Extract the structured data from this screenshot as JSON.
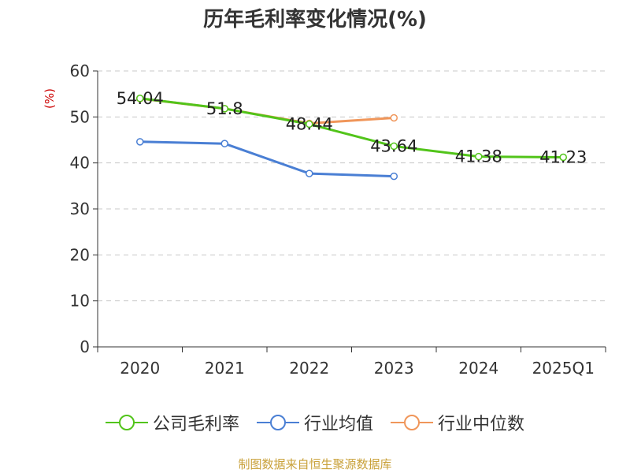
{
  "chart_data": {
    "type": "line",
    "title": "历年毛利率变化情况(%)",
    "ylabel": "(%)",
    "xlabel": "",
    "categories": [
      "2020",
      "2021",
      "2022",
      "2023",
      "2024",
      "2025Q1"
    ],
    "ylim": [
      0,
      60
    ],
    "yticks": [
      0,
      10,
      20,
      30,
      40,
      50,
      60
    ],
    "grid": true,
    "legend_position": "bottom",
    "series": [
      {
        "name": "公司毛利率",
        "color": "#52c41a",
        "values": [
          54.04,
          51.8,
          48.44,
          43.64,
          41.38,
          41.23
        ],
        "labels": [
          "54.04",
          "51.8",
          "48.44",
          "43.64",
          "41.38",
          "41.23"
        ]
      },
      {
        "name": "行业均值",
        "color": "#4a7fd4",
        "values": [
          44.6,
          44.2,
          37.7,
          37.1,
          null,
          null
        ],
        "labels": []
      },
      {
        "name": "行业中位数",
        "color": "#f0965a",
        "values": [
          54.0,
          51.8,
          48.6,
          49.8,
          null,
          null
        ],
        "labels": []
      }
    ]
  },
  "source_note": "制图数据来自恒生聚源数据库"
}
